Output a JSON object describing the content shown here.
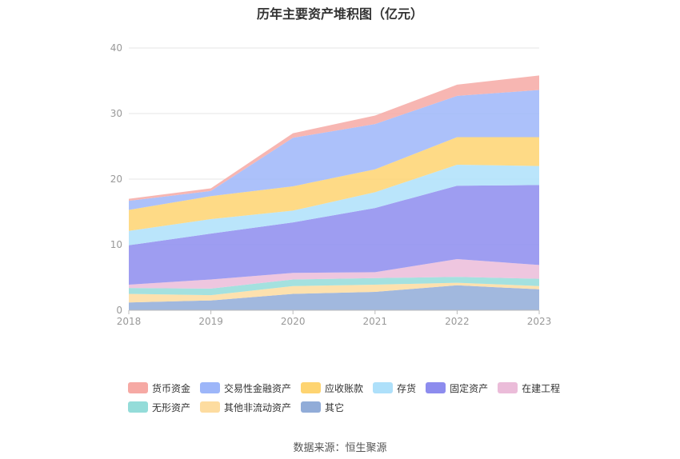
{
  "title": "历年主要资产堆积图（亿元）",
  "source": "数据来源：恒生聚源",
  "chart_data": {
    "type": "area",
    "stacked": true,
    "categories": [
      "2018",
      "2019",
      "2020",
      "2021",
      "2022",
      "2023"
    ],
    "ylim": [
      0,
      40
    ],
    "yticks": [
      0,
      10,
      20,
      30,
      40
    ],
    "grid": true,
    "legend_position": "bottom",
    "series": [
      {
        "name": "其它",
        "color": "#91acd8",
        "values": [
          1.2,
          1.5,
          2.5,
          2.8,
          3.8,
          3.2
        ]
      },
      {
        "name": "其他非流动资产",
        "color": "#fddca0",
        "values": [
          1.3,
          0.8,
          1.2,
          1.1,
          0.4,
          0.5
        ]
      },
      {
        "name": "无形资产",
        "color": "#94dcd9",
        "values": [
          0.9,
          1.0,
          1.0,
          1.0,
          0.9,
          1.1
        ]
      },
      {
        "name": "在建工程",
        "color": "#ebbcd9",
        "values": [
          0.5,
          1.4,
          1.0,
          0.9,
          2.7,
          2.1
        ]
      },
      {
        "name": "固定资产",
        "color": "#8d8cee",
        "values": [
          6.0,
          7.0,
          7.7,
          9.8,
          11.2,
          12.2
        ]
      },
      {
        "name": "存货",
        "color": "#aee0fa",
        "values": [
          2.2,
          2.2,
          1.8,
          2.4,
          3.2,
          2.9
        ]
      },
      {
        "name": "应收账款",
        "color": "#fed471",
        "values": [
          3.2,
          3.5,
          3.7,
          3.5,
          4.2,
          4.4
        ]
      },
      {
        "name": "交易性金融资产",
        "color": "#9db6f9",
        "values": [
          1.4,
          0.8,
          7.4,
          6.9,
          6.3,
          7.2
        ]
      },
      {
        "name": "货币资金",
        "color": "#f6a9a4",
        "values": [
          0.3,
          0.4,
          0.7,
          1.3,
          1.7,
          2.2
        ]
      }
    ]
  },
  "legend_rows": [
    [
      "货币资金",
      "交易性金融资产",
      "应收账款",
      "存货",
      "固定资产",
      "在建工程"
    ],
    [
      "无形资产",
      "其他非流动资产",
      "其它"
    ]
  ]
}
